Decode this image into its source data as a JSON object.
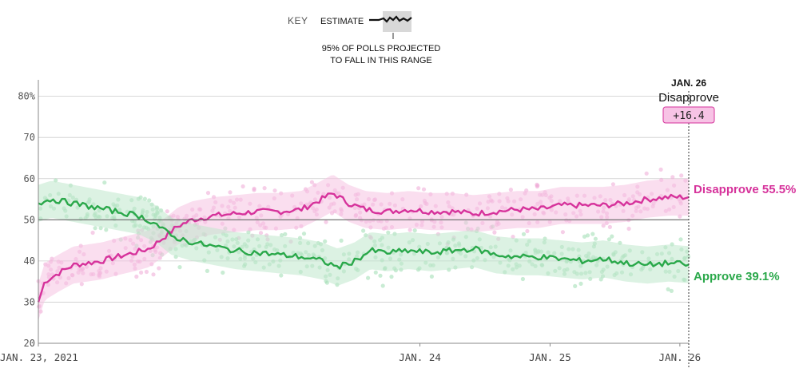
{
  "colors": {
    "approve": "#2aa84a",
    "approve_band": "#bfe8cc",
    "approve_dots": "#9ddcb1",
    "disapprove": "#d6329b",
    "disapprove_band": "#f5c2e2",
    "disapprove_dots": "#efa7d6",
    "gridline": "#cccccc",
    "midline": "#666666",
    "tooltip_badge_bg": "#f7c3e5",
    "tooltip_badge_border": "#d6329b"
  },
  "key": {
    "label": "KEY",
    "estimate_label": "ESTIMATE",
    "range_note_line1": "95% OF POLLS PROJECTED",
    "range_note_line2": "TO FALL IN THIS RANGE"
  },
  "tooltip": {
    "date": "JAN. 26",
    "title": "Disapprove",
    "value": "+16.4"
  },
  "end_labels": {
    "disapprove": "Disapprove 55.5%",
    "approve": "Approve 39.1%"
  },
  "chart_data": {
    "type": "line",
    "title": "",
    "xlabel": "",
    "ylabel": "",
    "x_range": [
      "2021-01-23",
      "2026-01-26"
    ],
    "ylim": [
      20,
      84
    ],
    "y_ticks": [
      {
        "value": 20,
        "label": "20"
      },
      {
        "value": 30,
        "label": "30"
      },
      {
        "value": 40,
        "label": "40"
      },
      {
        "value": 50,
        "label": "50"
      },
      {
        "value": 60,
        "label": "60"
      },
      {
        "value": 70,
        "label": "70"
      },
      {
        "value": 80,
        "label": "80%"
      }
    ],
    "x_ticks": [
      {
        "date": "2021-01-23",
        "label": "JAN. 23, 2021"
      },
      {
        "date": "2024-01-01",
        "label": "JAN. 24"
      },
      {
        "date": "2025-01-01",
        "label": "JAN. 25"
      },
      {
        "date": "2026-01-01",
        "label": "JAN. 26"
      }
    ],
    "reference_line": 50,
    "grid": true,
    "series": [
      {
        "name": "Disapprove",
        "color_key": "disapprove",
        "band_halfwidth": 4.5,
        "points": [
          [
            "2021-01-23",
            30
          ],
          [
            "2021-02-10",
            35
          ],
          [
            "2021-03-20",
            37
          ],
          [
            "2021-05-01",
            39
          ],
          [
            "2021-06-10",
            39.5
          ],
          [
            "2021-07-20",
            40
          ],
          [
            "2021-09-01",
            41
          ],
          [
            "2021-10-20",
            42
          ],
          [
            "2021-12-01",
            43
          ],
          [
            "2022-01-15",
            46
          ],
          [
            "2022-02-20",
            48.5
          ],
          [
            "2022-04-01",
            50
          ],
          [
            "2022-06-01",
            51
          ],
          [
            "2022-08-01",
            51.5
          ],
          [
            "2022-10-01",
            52
          ],
          [
            "2022-12-01",
            52
          ],
          [
            "2023-02-01",
            52.5
          ],
          [
            "2023-03-20",
            54.5
          ],
          [
            "2023-05-01",
            56.5
          ],
          [
            "2023-06-15",
            54
          ],
          [
            "2023-08-01",
            52.5
          ],
          [
            "2023-10-01",
            52
          ],
          [
            "2023-12-01",
            52.5
          ],
          [
            "2024-02-01",
            52
          ],
          [
            "2024-04-01",
            52
          ],
          [
            "2024-06-01",
            51.5
          ],
          [
            "2024-08-01",
            52
          ],
          [
            "2024-10-01",
            52.5
          ],
          [
            "2024-12-01",
            52.5
          ],
          [
            "2025-02-01",
            53.5
          ],
          [
            "2025-04-01",
            53.5
          ],
          [
            "2025-06-01",
            53.5
          ],
          [
            "2025-08-01",
            54
          ],
          [
            "2025-10-01",
            55
          ],
          [
            "2025-12-01",
            55.5
          ],
          [
            "2026-01-26",
            55.5
          ]
        ]
      },
      {
        "name": "Approve",
        "color_key": "approve",
        "band_halfwidth": 4.5,
        "points": [
          [
            "2021-01-23",
            54
          ],
          [
            "2021-03-01",
            55
          ],
          [
            "2021-05-01",
            54
          ],
          [
            "2021-07-01",
            53
          ],
          [
            "2021-09-01",
            52
          ],
          [
            "2021-11-01",
            51
          ],
          [
            "2021-12-20",
            49
          ],
          [
            "2022-02-01",
            46
          ],
          [
            "2022-04-01",
            44.5
          ],
          [
            "2022-06-01",
            43.5
          ],
          [
            "2022-08-01",
            42.5
          ],
          [
            "2022-10-01",
            42
          ],
          [
            "2022-12-01",
            41.5
          ],
          [
            "2023-02-01",
            41
          ],
          [
            "2023-04-01",
            40
          ],
          [
            "2023-05-15",
            38.5
          ],
          [
            "2023-07-01",
            40
          ],
          [
            "2023-08-15",
            42.5
          ],
          [
            "2023-10-01",
            42
          ],
          [
            "2023-12-01",
            42.5
          ],
          [
            "2024-02-01",
            42
          ],
          [
            "2024-04-01",
            42.5
          ],
          [
            "2024-06-01",
            43
          ],
          [
            "2024-08-01",
            41.5
          ],
          [
            "2024-10-01",
            41
          ],
          [
            "2024-12-01",
            41
          ],
          [
            "2025-02-01",
            40.5
          ],
          [
            "2025-04-01",
            40
          ],
          [
            "2025-06-01",
            40.5
          ],
          [
            "2025-08-01",
            39.5
          ],
          [
            "2025-10-01",
            39
          ],
          [
            "2025-12-01",
            39.5
          ],
          [
            "2026-01-26",
            39.1
          ]
        ]
      }
    ]
  }
}
